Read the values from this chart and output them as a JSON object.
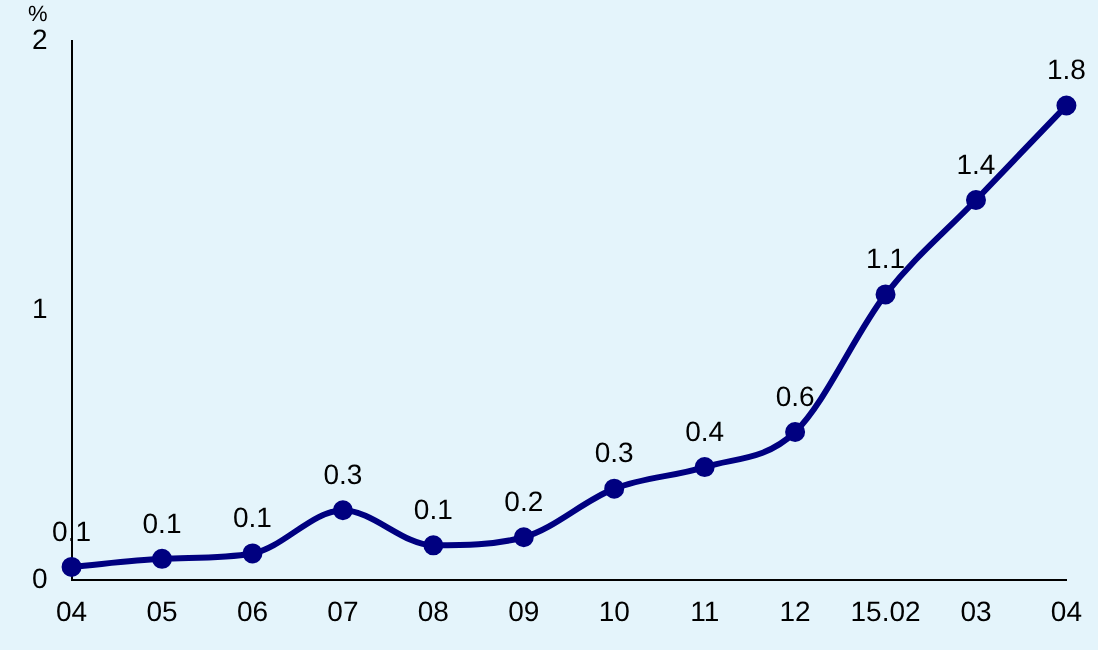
{
  "chart_data": {
    "type": "line",
    "ylabel": "%",
    "categories": [
      "04",
      "05",
      "06",
      "07",
      "08",
      "09",
      "10",
      "11",
      "12",
      "15.02",
      "03",
      "04"
    ],
    "series": [
      {
        "color": "#000080",
        "values": [
          0.05,
          0.08,
          0.1,
          0.26,
          0.13,
          0.16,
          0.34,
          0.42,
          0.55,
          1.06,
          1.41,
          1.76
        ],
        "value_labels": [
          "0.1",
          "0.1",
          "0.1",
          "0.3",
          "0.1",
          "0.2",
          "0.3",
          "0.4",
          "0.6",
          "1.1",
          "1.4",
          "1.8"
        ]
      }
    ],
    "ylim": [
      0,
      2
    ],
    "yticks": [
      0,
      1,
      2
    ],
    "grid": false,
    "legend": false,
    "marker": "circle",
    "line_style": "solid"
  }
}
